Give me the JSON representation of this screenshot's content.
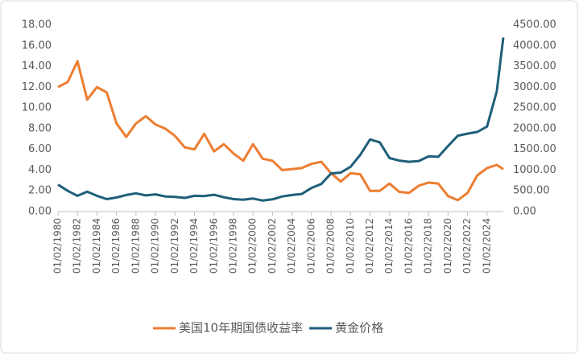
{
  "chart_data": {
    "type": "line",
    "x": [
      "01/02/1980",
      "01/02/1981",
      "01/02/1982",
      "01/02/1983",
      "01/02/1984",
      "01/02/1985",
      "01/02/1986",
      "01/02/1987",
      "01/02/1988",
      "01/02/1989",
      "01/02/1990",
      "01/02/1991",
      "01/02/1992",
      "01/02/1993",
      "01/02/1994",
      "01/02/1995",
      "01/02/1996",
      "01/02/1997",
      "01/02/1998",
      "01/02/1999",
      "01/02/2000",
      "01/02/2001",
      "01/02/2002",
      "01/02/2003",
      "01/02/2004",
      "01/02/2005",
      "01/02/2006",
      "01/02/2007",
      "01/02/2008",
      "01/02/2009",
      "01/02/2010",
      "01/02/2011",
      "01/02/2012",
      "01/02/2013",
      "01/02/2014",
      "01/02/2015",
      "01/02/2016",
      "01/02/2017",
      "01/02/2018",
      "01/02/2019",
      "01/02/2020",
      "01/02/2021",
      "01/02/2022",
      "01/02/2023",
      "01/02/2024",
      "01/02/2025",
      "01/10/2025"
    ],
    "series": [
      {
        "name": "美国10年期国债收益率",
        "color": "#ed7d31",
        "axis": "y",
        "values": [
          12,
          12.5,
          14.5,
          10.8,
          12,
          11.5,
          8.5,
          7.2,
          8.5,
          9.2,
          8.4,
          8,
          7.3,
          6.2,
          6,
          7.5,
          5.8,
          6.5,
          5.6,
          4.9,
          6.5,
          5.1,
          4.9,
          4,
          4.1,
          4.2,
          4.6,
          4.8,
          3.7,
          2.9,
          3.7,
          3.6,
          2,
          2,
          2.7,
          1.9,
          1.8,
          2.5,
          2.8,
          2.7,
          1.5,
          1.1,
          1.8,
          3.5,
          4.2,
          4.5,
          4.1
        ]
      },
      {
        "name": "黄金价格",
        "color": "#1f5f7a",
        "axis": "y2",
        "values": [
          650,
          500,
          380,
          480,
          380,
          300,
          340,
          400,
          440,
          390,
          415,
          365,
          355,
          330,
          380,
          375,
          405,
          345,
          300,
          287,
          315,
          265,
          295,
          365,
          400,
          425,
          570,
          665,
          920,
          940,
          1080,
          1370,
          1740,
          1670,
          1290,
          1230,
          1200,
          1220,
          1330,
          1320,
          1580,
          1830,
          1880,
          1920,
          2050,
          2900,
          4200
        ]
      }
    ],
    "xlim": [
      "01/02/1980",
      "01/10/2025"
    ],
    "xticks": [
      "01/02/1980",
      "01/02/1982",
      "01/02/1984",
      "01/02/1986",
      "01/02/1988",
      "01/02/1990",
      "01/02/1992",
      "01/02/1994",
      "01/02/1996",
      "01/02/1998",
      "01/02/2000",
      "01/02/2002",
      "01/02/2004",
      "01/02/2006",
      "01/02/2008",
      "01/02/2010",
      "01/02/2012",
      "01/02/2014",
      "01/02/2016",
      "01/02/2018",
      "01/02/2020",
      "01/02/2022",
      "01/02/2024"
    ],
    "ylim": [
      0,
      18
    ],
    "yticks": [
      {
        "value": 0,
        "label": "0.00"
      },
      {
        "value": 2,
        "label": "2.00"
      },
      {
        "value": 4,
        "label": "4.00"
      },
      {
        "value": 6,
        "label": "6.00"
      },
      {
        "value": 8,
        "label": "8.00"
      },
      {
        "value": 10,
        "label": "10.00"
      },
      {
        "value": 12,
        "label": "12.00"
      },
      {
        "value": 14,
        "label": "14.00"
      },
      {
        "value": 16,
        "label": "16.00"
      },
      {
        "value": 18,
        "label": "18.00"
      }
    ],
    "y2lim": [
      0,
      4500
    ],
    "y2ticks": [
      {
        "value": 0,
        "label": "0.00"
      },
      {
        "value": 500,
        "label": "500.00"
      },
      {
        "value": 1000,
        "label": "1000.00"
      },
      {
        "value": 1500,
        "label": "1500.00"
      },
      {
        "value": 2000,
        "label": "2000.00"
      },
      {
        "value": 2500,
        "label": "2500.00"
      },
      {
        "value": 3000,
        "label": "3000.00"
      },
      {
        "value": 3500,
        "label": "3500.00"
      },
      {
        "value": 4000,
        "label": "4000.00"
      },
      {
        "value": 4500,
        "label": "4500.00"
      }
    ],
    "legend": "bottom"
  }
}
